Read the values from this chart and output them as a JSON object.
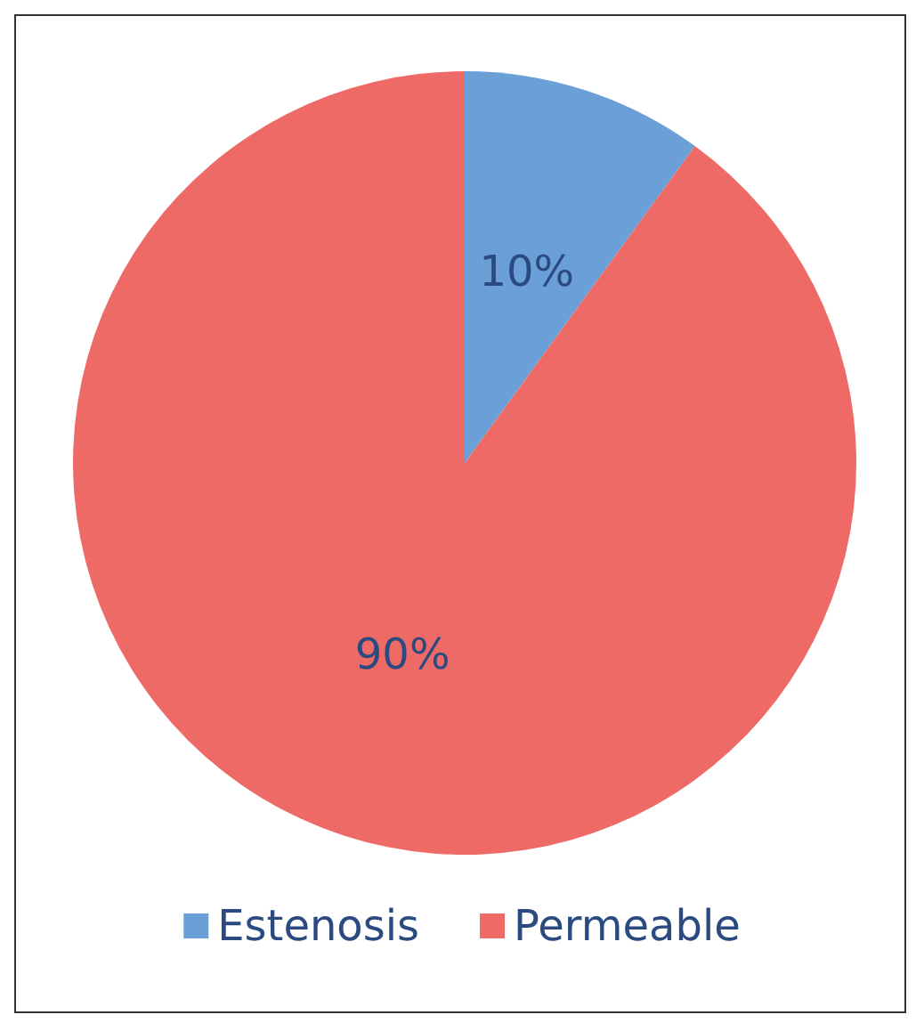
{
  "chart_data": {
    "type": "pie",
    "categories": [
      "Estenosis",
      "Permeable"
    ],
    "values": [
      10,
      90
    ],
    "colors": [
      "#6a9fd8",
      "#ee6a66"
    ],
    "value_labels": [
      "10%",
      "90%"
    ],
    "legend": "bottom"
  }
}
